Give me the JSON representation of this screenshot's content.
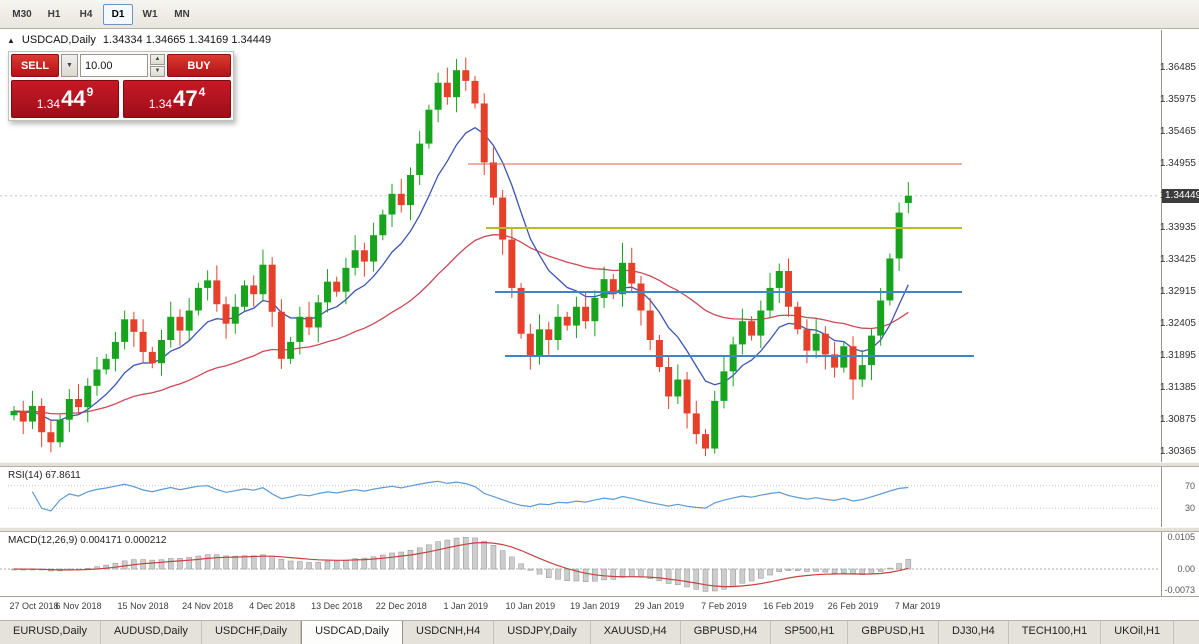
{
  "toolbar": {
    "timeframes": [
      "M30",
      "H1",
      "H4",
      "D1",
      "W1",
      "MN"
    ],
    "active": "D1"
  },
  "legend": {
    "collapse": "▲",
    "symbol": "USDCAD,Daily",
    "ohlc": "1.34334 1.34665 1.34169 1.34449"
  },
  "trade_panel": {
    "sell": "SELL",
    "buy": "BUY",
    "volume": "10.00",
    "sell_price": {
      "base": "1.34",
      "pips": "44",
      "pip": "9"
    },
    "buy_price": {
      "base": "1.34",
      "pips": "47",
      "pip": "4"
    }
  },
  "price_axis": {
    "labels": [
      "1.36485",
      "1.35975",
      "1.35465",
      "1.34955",
      "1.34445",
      "1.33935",
      "1.33425",
      "1.32915",
      "1.32405",
      "1.31895",
      "1.31385",
      "1.30875",
      "1.30365"
    ],
    "current": "1.34449"
  },
  "rsi": {
    "label": "RSI(14) 67.8611",
    "period": 14,
    "levels": [
      {
        "value": 70,
        "text": "70"
      },
      {
        "value": 30,
        "text": "30"
      }
    ]
  },
  "macd": {
    "label": "MACD(12,26,9) 0.004171 0.000212",
    "fast": 12,
    "slow": 26,
    "signal": 9,
    "scale": [
      {
        "value": 0.0105,
        "text": "0.0105"
      },
      {
        "value": 0,
        "text": "0.00"
      },
      {
        "value": -0.0073,
        "text": "-0.0073"
      }
    ]
  },
  "x_axis": [
    "27 Oct 2018",
    "6 Nov 2018",
    "15 Nov 2018",
    "24 Nov 2018",
    "4 Dec 2018",
    "13 Dec 2018",
    "22 Dec 2018",
    "1 Jan 2019",
    "10 Jan 2019",
    "19 Jan 2019",
    "29 Jan 2019",
    "7 Feb 2019",
    "16 Feb 2019",
    "26 Feb 2019",
    "7 Mar 2019"
  ],
  "tabs": {
    "active": "USDCAD,Daily",
    "items": [
      "EURUSD,Daily",
      "AUDUSD,Daily",
      "USDCHF,Daily",
      "USDCAD,Daily",
      "USDCNH,H4",
      "USDJPY,Daily",
      "XAUUSD,H4",
      "GBPUSD,H4",
      "SP500,H1",
      "GBPUSD,H1",
      "DJ30,H4",
      "TECH100,H1",
      "UKOil,H1"
    ]
  },
  "chart_data": {
    "type": "candlestick",
    "symbol": "USDCAD",
    "timeframe": "Daily",
    "current_price": 1.34449,
    "y_range": [
      1.301,
      1.37
    ],
    "x_labels": [
      "27 Oct 2018",
      "6 Nov 2018",
      "15 Nov 2018",
      "24 Nov 2018",
      "4 Dec 2018",
      "13 Dec 2018",
      "22 Dec 2018",
      "1 Jan 2019",
      "10 Jan 2019",
      "19 Jan 2019",
      "29 Jan 2019",
      "7 Feb 2019",
      "16 Feb 2019",
      "26 Feb 2019",
      "7 Mar 2019"
    ],
    "colors": {
      "up": "#17a31d",
      "down": "#e6402a",
      "ma_fast": "#3a55b4",
      "ma_slow": "#cf4856",
      "rsi": "#5b9bd5",
      "macd_hist": "#cdcdcd",
      "macd_hist_border": "#909090",
      "macd_signal": "#c94040"
    },
    "overlays": {
      "ma_fast": {
        "type": "ema",
        "period": 10
      },
      "ma_slow": {
        "type": "ema",
        "period": 40
      }
    },
    "indicators": {
      "rsi_period": 14,
      "rsi_current": 67.8611,
      "macd_params": [
        12,
        26,
        9
      ],
      "macd_current": [
        0.004171,
        0.000212
      ]
    },
    "hlines": [
      {
        "price": 1.34955,
        "color": "#e06056",
        "width": 1,
        "x1": 468,
        "x2": 962
      },
      {
        "price": 1.33935,
        "color": "#b9bb22",
        "width": 2,
        "x1": 486,
        "x2": 962
      },
      {
        "price": 1.32915,
        "color": "#3f86c7",
        "width": 2,
        "x1": 495,
        "x2": 962
      },
      {
        "price": 1.31895,
        "color": "#3f86c7",
        "width": 2,
        "x1": 505,
        "x2": 974
      }
    ],
    "candles": [
      [
        1.3095,
        1.311,
        1.3087,
        1.3102
      ],
      [
        1.3102,
        1.3118,
        1.3065,
        1.3085
      ],
      [
        1.3085,
        1.3134,
        1.3073,
        1.311
      ],
      [
        1.311,
        1.3122,
        1.3044,
        1.3068
      ],
      [
        1.3068,
        1.3088,
        1.3036,
        1.3052
      ],
      [
        1.3052,
        1.3096,
        1.3044,
        1.3088
      ],
      [
        1.3088,
        1.3137,
        1.3068,
        1.3121
      ],
      [
        1.3121,
        1.3145,
        1.3096,
        1.3108
      ],
      [
        1.3108,
        1.3154,
        1.3084,
        1.3142
      ],
      [
        1.3142,
        1.3188,
        1.3126,
        1.3168
      ],
      [
        1.3168,
        1.3193,
        1.316,
        1.3185
      ],
      [
        1.3185,
        1.3228,
        1.3165,
        1.3212
      ],
      [
        1.3212,
        1.3262,
        1.32,
        1.3248
      ],
      [
        1.3248,
        1.326,
        1.3204,
        1.3228
      ],
      [
        1.3228,
        1.3248,
        1.318,
        1.3196
      ],
      [
        1.3196,
        1.3204,
        1.317,
        1.3178
      ],
      [
        1.3178,
        1.3231,
        1.3158,
        1.3215
      ],
      [
        1.3215,
        1.3276,
        1.3203,
        1.3252
      ],
      [
        1.3252,
        1.3264,
        1.3206,
        1.323
      ],
      [
        1.323,
        1.3282,
        1.3214,
        1.3262
      ],
      [
        1.3262,
        1.3306,
        1.3254,
        1.3298
      ],
      [
        1.3298,
        1.3326,
        1.3278,
        1.331
      ],
      [
        1.331,
        1.3334,
        1.326,
        1.3272
      ],
      [
        1.3272,
        1.3284,
        1.3217,
        1.3241
      ],
      [
        1.3241,
        1.3288,
        1.3225,
        1.3268
      ],
      [
        1.3268,
        1.331,
        1.326,
        1.3302
      ],
      [
        1.3302,
        1.3318,
        1.3268,
        1.3288
      ],
      [
        1.3288,
        1.3359,
        1.3276,
        1.3335
      ],
      [
        1.3335,
        1.3347,
        1.3236,
        1.326
      ],
      [
        1.326,
        1.328,
        1.3169,
        1.3185
      ],
      [
        1.3185,
        1.322,
        1.3177,
        1.3212
      ],
      [
        1.3212,
        1.3268,
        1.3192,
        1.3252
      ],
      [
        1.3252,
        1.3276,
        1.3223,
        1.3235
      ],
      [
        1.3235,
        1.3287,
        1.3211,
        1.3275
      ],
      [
        1.3275,
        1.3328,
        1.3259,
        1.3308
      ],
      [
        1.3308,
        1.3316,
        1.3284,
        1.3292
      ],
      [
        1.3292,
        1.3346,
        1.3272,
        1.333
      ],
      [
        1.333,
        1.3382,
        1.3318,
        1.3358
      ],
      [
        1.3358,
        1.337,
        1.3316,
        1.334
      ],
      [
        1.334,
        1.3402,
        1.3324,
        1.3382
      ],
      [
        1.3382,
        1.3423,
        1.3374,
        1.3415
      ],
      [
        1.3415,
        1.3464,
        1.3395,
        1.3448
      ],
      [
        1.3448,
        1.3472,
        1.3418,
        1.343
      ],
      [
        1.343,
        1.349,
        1.3406,
        1.3478
      ],
      [
        1.3478,
        1.3548,
        1.3462,
        1.3528
      ],
      [
        1.3528,
        1.359,
        1.352,
        1.3582
      ],
      [
        1.3582,
        1.3641,
        1.3562,
        1.3625
      ],
      [
        1.3625,
        1.3649,
        1.359,
        1.3602
      ],
      [
        1.3602,
        1.3663,
        1.3578,
        1.3645
      ],
      [
        1.3645,
        1.3665,
        1.3612,
        1.3628
      ],
      [
        1.3628,
        1.3636,
        1.3584,
        1.3592
      ],
      [
        1.3592,
        1.3608,
        1.3478,
        1.3498
      ],
      [
        1.3498,
        1.3522,
        1.343,
        1.3442
      ],
      [
        1.3442,
        1.3454,
        1.3351,
        1.3375
      ],
      [
        1.3375,
        1.3395,
        1.3282,
        1.3298
      ],
      [
        1.3298,
        1.3306,
        1.3217,
        1.3225
      ],
      [
        1.3225,
        1.3241,
        1.3168,
        1.3188
      ],
      [
        1.3188,
        1.3256,
        1.3176,
        1.3232
      ],
      [
        1.3232,
        1.3244,
        1.3191,
        1.3215
      ],
      [
        1.3215,
        1.3272,
        1.3199,
        1.3252
      ],
      [
        1.3252,
        1.326,
        1.323,
        1.3238
      ],
      [
        1.3238,
        1.3284,
        1.3218,
        1.3268
      ],
      [
        1.3268,
        1.3292,
        1.3233,
        1.3245
      ],
      [
        1.3245,
        1.3294,
        1.3221,
        1.3282
      ],
      [
        1.3282,
        1.3332,
        1.3266,
        1.3312
      ],
      [
        1.3312,
        1.332,
        1.328,
        1.3288
      ],
      [
        1.3288,
        1.337,
        1.3268,
        1.3338
      ],
      [
        1.3338,
        1.3362,
        1.3293,
        1.3305
      ],
      [
        1.3305,
        1.3317,
        1.3238,
        1.3262
      ],
      [
        1.3262,
        1.3282,
        1.3199,
        1.3215
      ],
      [
        1.3215,
        1.3223,
        1.3164,
        1.3172
      ],
      [
        1.3172,
        1.3188,
        1.3105,
        1.3125
      ],
      [
        1.3125,
        1.3176,
        1.3113,
        1.3152
      ],
      [
        1.3152,
        1.3164,
        1.3074,
        1.3098
      ],
      [
        1.3098,
        1.3118,
        1.3049,
        1.3065
      ],
      [
        1.3065,
        1.3073,
        1.303,
        1.3042
      ],
      [
        1.3042,
        1.3134,
        1.3034,
        1.3118
      ],
      [
        1.3118,
        1.3189,
        1.3106,
        1.3165
      ],
      [
        1.3165,
        1.322,
        1.3141,
        1.3208
      ],
      [
        1.3208,
        1.3265,
        1.3192,
        1.3245
      ],
      [
        1.3245,
        1.3253,
        1.3214,
        1.3222
      ],
      [
        1.3222,
        1.3278,
        1.3202,
        1.3262
      ],
      [
        1.3262,
        1.3322,
        1.325,
        1.3298
      ],
      [
        1.3298,
        1.3337,
        1.3274,
        1.3325
      ],
      [
        1.3325,
        1.3345,
        1.3252,
        1.3268
      ],
      [
        1.3268,
        1.3276,
        1.3224,
        1.3232
      ],
      [
        1.3232,
        1.3248,
        1.3178,
        1.3198
      ],
      [
        1.3198,
        1.3249,
        1.3186,
        1.3225
      ],
      [
        1.3225,
        1.3237,
        1.3168,
        1.3192
      ],
      [
        1.3192,
        1.3212,
        1.3155,
        1.3171
      ],
      [
        1.3171,
        1.3213,
        1.3163,
        1.3205
      ],
      [
        1.3205,
        1.3221,
        1.312,
        1.3152
      ],
      [
        1.3152,
        1.3199,
        1.314,
        1.3175
      ],
      [
        1.3175,
        1.3234,
        1.3151,
        1.3222
      ],
      [
        1.3222,
        1.3298,
        1.3206,
        1.3278
      ],
      [
        1.3278,
        1.3353,
        1.327,
        1.3345
      ],
      [
        1.3345,
        1.3434,
        1.3325,
        1.3418
      ],
      [
        1.34334,
        1.34665,
        1.34169,
        1.34449
      ]
    ]
  }
}
